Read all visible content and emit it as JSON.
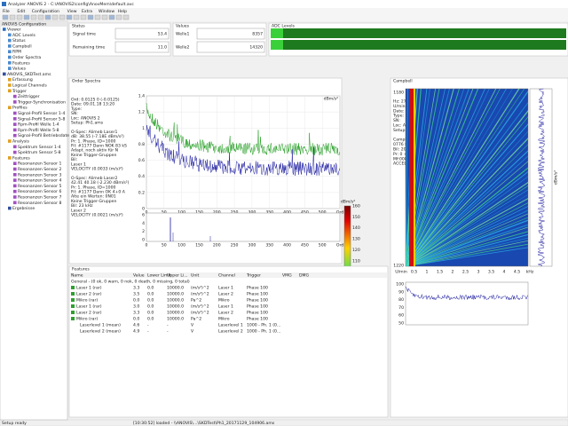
{
  "window": {
    "title": "Analyzer ANOVIS 2 - C:\\ANOVIS2\\config\\AnovMem\\default.avc",
    "menu": [
      "File",
      "Edit",
      "Configuration",
      "View",
      "Extra",
      "Window",
      "Help"
    ],
    "status": "Setup ready",
    "status_message": "[10:30:52] loaded - \\\\ANOVIS\\...\\SKDTest\\Ph1_20171129_104906.ams"
  },
  "tree": {
    "header": "ANOVIS Configuration",
    "items": [
      "Viewer",
      "ADC Levels",
      "Status",
      "Campbell",
      "RPM",
      "Order Spectra",
      "Features",
      "Values",
      "ANOVIS_SKDTest.ams",
      "Erfassung",
      "Logical Channels",
      "Trigger",
      "Zeittrigger",
      "Trigger-Synchronisation",
      "Profiles",
      "Signal-Profil Sensor 1-4",
      "Signal-Profil Sensor 5-8",
      "Rpm-Profil Welle 1-4",
      "Rpm-Profil Welle 5-8",
      "Signal-Profil Betriebsdaten",
      "Analysis",
      "Spektrum Sensor 1-4",
      "Spektrum Sensor 5-8",
      "Features",
      "Resonanzen Sensor 1",
      "Resonanzen Sensor 2",
      "Resonanzen Sensor 3",
      "Resonanzen Sensor 4",
      "Resonanzen Sensor 5",
      "Resonanzen Sensor 6",
      "Resonanzen Sensor 7",
      "Resonanzen Sensor 8",
      "Ergebnisse"
    ]
  },
  "status_panel": {
    "title": "Status",
    "rows": [
      {
        "label": "Signal time",
        "value": "53.4"
      },
      {
        "label": "Remaining time",
        "value": "11.0"
      }
    ]
  },
  "values_panel": {
    "title": "Values",
    "rows": [
      {
        "label": "Welle1",
        "value": "8357"
      },
      {
        "label": "Welle2",
        "value": "14320"
      }
    ]
  },
  "levels_panel": {
    "title": "ADC Levels"
  },
  "spectra": {
    "title": "Order Spectra",
    "info": [
      "Ord:     0.0125  0  (-0.0125)",
      "Date:    09.01.18 13:20",
      "Type:",
      "SN:",
      "Loc:     ANOVIS 2",
      "Setup:   Ph1.ams",
      "",
      "O-Spec: Alimeb Laser1",
      "dB:  38.55  (-7.18E dBm/s²)",
      "Pr:  1. Phase, ID=1000",
      "Fil:  #1177 Dann NOK 83 kS",
      "      Adapt. noch aktiv für N",
      "      Keine Trigger-Gruppen",
      "Bil:",
      "Laser 1",
      "VELOCITY (0.0033 (m/s)²)",
      "",
      "O-Spec: Alimeb Laser2",
      "42.41  40.18  (-2.230 dBm/s²)",
      "Pr:  1. Phase, ID=1000",
      "Fil:  #1177 Dann OK 4+0 A",
      "      Alte ein Werten: 0N01",
      "      Keine Trigger-Gruppen",
      "Bil:      23 kHz",
      "Laser 2",
      "VELOCITY (0.0021 (m/s)²)"
    ],
    "y_unit": "dBm/s²",
    "xticks": [
      "0",
      "50",
      "100",
      "150",
      "200",
      "250",
      "300",
      "350",
      "400",
      "450",
      "500",
      "Ord"
    ],
    "yticks": [
      "1.4",
      "1.2",
      "1",
      "0.8",
      "0.6",
      "0.4",
      "0.2",
      "0"
    ],
    "lower_yticks": [
      "6",
      "4",
      "2",
      "0"
    ]
  },
  "colorbar": {
    "unit": "dBm/s²",
    "ticks": [
      "160",
      "150",
      "140",
      "130",
      "120",
      "110",
      "100",
      "90",
      "80",
      "70",
      "60",
      "52.07"
    ]
  },
  "campbell": {
    "title": "Campbell",
    "info": [
      "Hz:     275.0  (-275)",
      "U/min:  7400  210  (-7020)",
      "Date:   09.01.18 13:20",
      "Type:",
      "SN:",
      "Loc:    ANOVIS 2",
      "Setup:  Ph1.ams",
      "",
      "Campbell:       down",
      "0776  8192  (-5.830 dBm/s²)",
      "Bil:     20 kHz",
      "Pr:      0 +/-, ID=1000",
      "Mf:008",
      "ACCELERATION (0.434e+005 m/s²)²"
    ],
    "yticks": [
      "1180",
      "1220"
    ],
    "xticks": [
      "U/min",
      "0.5",
      "1",
      "1.5",
      "2",
      "2.5",
      "3",
      "3.5",
      "4",
      "4.5",
      "kHz"
    ],
    "lower_yticks": [
      "100",
      "90",
      "80",
      "70",
      "60",
      "50"
    ],
    "side_unit": "dBm/s²"
  },
  "features": {
    "title": "Features",
    "columns": [
      "Name",
      "Value",
      "Lower Limit",
      "Upper Li...",
      "Unit",
      "Channel",
      "Trigger",
      "VMG",
      "DMG"
    ],
    "rows": [
      [
        "General - (0 ok, 0 warn, 0 nok, 0 death, 0 missing, 0 total)"
      ],
      [
        "Laser 1 (rar)",
        "3.3",
        "0.0",
        "10000.0",
        "(m/s²)^2",
        "Laser 1",
        "Phase 100",
        "",
        ""
      ],
      [
        "Laser 2 (rar)",
        "3.5",
        "0.0",
        "10000.0",
        "(m/s²)^2",
        "Laser 2",
        "Phase 100",
        "",
        ""
      ],
      [
        "Mikro (rar)",
        "0.0",
        "0.0",
        "10000.0",
        "Pa^2",
        "Mikro",
        "Phase 100",
        "",
        ""
      ],
      [
        "Laser 1 (rar)",
        "3.0",
        "0.0",
        "10000.0",
        "(m/s²)^2",
        "Laser 1",
        "Phase 100",
        "",
        ""
      ],
      [
        "Laser 2 (rar)",
        "3.3",
        "0.0",
        "10000.0",
        "(m/s²)^2",
        "Laser 2",
        "Phase 100",
        "",
        ""
      ],
      [
        "Mikro (rar)",
        "0.0",
        "0.0",
        "10000.0",
        "Pa^2",
        "Mikro",
        "Phase 100",
        "",
        ""
      ],
      [
        "Laserlevel 1 (mean)",
        "4.6",
        "-",
        "-",
        "V",
        "Laserlevel 1",
        "1000 - Ph. 1 (0...",
        "",
        ""
      ],
      [
        "Laserlevel 2 (mean)",
        "4.9",
        "-",
        "-",
        "V",
        "Laserlevel 2",
        "1000 - Ph. 1 (0...",
        "",
        ""
      ]
    ]
  }
}
